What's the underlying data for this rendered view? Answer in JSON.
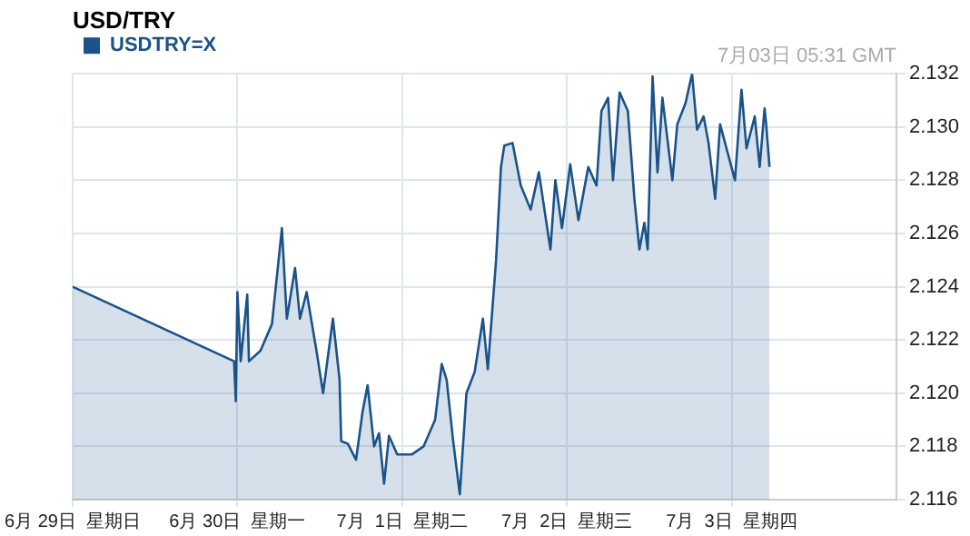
{
  "chart_data": {
    "type": "area",
    "title": "USD/TRY",
    "annotations": [
      "7月03日 05:31 GMT"
    ],
    "legend": "top left",
    "grid": true,
    "xlim": [
      "--06-29",
      "--07-04"
    ],
    "xticks": [
      {
        "value": "--06-29",
        "label": "6月 29日  星期日"
      },
      {
        "value": "--06-30",
        "label": "6月 30日  星期一"
      },
      {
        "value": "--07-01",
        "label": "7月  1日  星期二"
      },
      {
        "value": "--07-02",
        "label": "7月  2日  星期三"
      },
      {
        "value": "--07-03",
        "label": "7月  3日  星期四"
      }
    ],
    "ylim": [
      2.116,
      2.132
    ],
    "yticks": [
      2.116,
      2.118,
      {
        "value": 2.12,
        "label": "2.120"
      },
      2.122,
      2.124,
      2.126,
      2.128,
      {
        "value": 2.13,
        "label": "2.130"
      },
      2.132
    ],
    "series": [
      {
        "name": "USDTRY=X",
        "color": "#1a5289",
        "x": [
          "--06-29T00:00",
          "--06-29T23:31",
          "--06-29T23:46",
          "--06-30T00:00",
          "--06-30T00:29",
          "--06-30T01:26",
          "--06-30T01:41",
          "--06-30T03:22",
          "--06-30T05:02",
          "--06-30T06:29",
          "--06-30T07:12",
          "--06-30T08:24",
          "--06-30T09:07",
          "--06-30T10:05",
          "--06-30T11:31",
          "--06-30T12:29",
          "--06-30T13:55",
          "--06-30T14:53",
          "--06-30T15:07",
          "--06-30T16:05",
          "--06-30T17:17",
          "--06-30T18:14",
          "--06-30T18:58",
          "--06-30T19:55",
          "--06-30T20:38",
          "--06-30T21:22",
          "--06-30T22:05",
          "--06-30T23:17",
          "--07-01T01:26",
          "--07-01T03:07",
          "--07-01T04:48",
          "--07-01T05:46",
          "--07-01T06:29",
          "--07-01T07:26",
          "--07-01T08:24",
          "--07-01T09:22",
          "--07-01T10:34",
          "--07-01T11:46",
          "--07-01T12:29",
          "--07-01T13:41",
          "--07-01T14:24",
          "--07-01T14:53",
          "--07-01T16:05",
          "--07-01T17:17",
          "--07-01T18:43",
          "--07-01T19:55",
          "--07-01T21:36",
          "--07-01T22:19",
          "--07-01T23:17",
          "--07-02T00:29",
          "--07-02T01:41",
          "--07-02T03:07",
          "--07-02T04:19",
          "--07-02T05:02",
          "--07-02T06:00",
          "--07-02T06:43",
          "--07-02T07:41",
          "--07-02T08:53",
          "--07-02T09:50",
          "--07-02T10:34",
          "--07-02T11:17",
          "--07-02T11:46",
          "--07-02T12:29",
          "--07-02T13:12",
          "--07-02T13:55",
          "--07-02T15:22",
          "--07-02T16:05",
          "--07-02T17:17",
          "--07-02T18:14",
          "--07-02T18:58",
          "--07-02T19:55",
          "--07-02T20:38",
          "--07-02T21:36",
          "--07-02T22:19",
          "--07-02T23:46",
          "--07-03T00:29",
          "--07-03T01:26",
          "--07-03T02:10",
          "--07-03T03:22",
          "--07-03T04:05",
          "--07-03T04:48",
          "--07-03T05:02",
          "--07-03T05:31"
        ],
        "values": [
          2.124,
          2.1212,
          2.1197,
          2.1238,
          2.1212,
          2.1237,
          2.1212,
          2.1216,
          2.1226,
          2.1262,
          2.1228,
          2.1247,
          2.1228,
          2.1238,
          2.1216,
          2.12,
          2.1228,
          2.1205,
          2.1182,
          2.1181,
          2.1175,
          2.1193,
          2.1203,
          2.118,
          2.1185,
          2.1166,
          2.1184,
          2.1177,
          2.1177,
          2.118,
          2.119,
          2.1211,
          2.1205,
          2.1182,
          2.1162,
          2.12,
          2.1208,
          2.1228,
          2.1209,
          2.125,
          2.1285,
          2.1293,
          2.1294,
          2.1278,
          2.1269,
          2.1283,
          2.1254,
          2.128,
          2.1262,
          2.1286,
          2.1265,
          2.1285,
          2.1278,
          2.1306,
          2.1311,
          2.128,
          2.1313,
          2.1306,
          2.1273,
          2.1254,
          2.1264,
          2.1254,
          2.1319,
          2.1283,
          2.1311,
          2.128,
          2.1301,
          2.1309,
          2.132,
          2.1299,
          2.1304,
          2.1294,
          2.1273,
          2.1301,
          2.1287,
          2.128,
          2.1314,
          2.1292,
          2.1304,
          2.1285,
          2.1307,
          2.1301,
          2.1285
        ]
      }
    ]
  }
}
